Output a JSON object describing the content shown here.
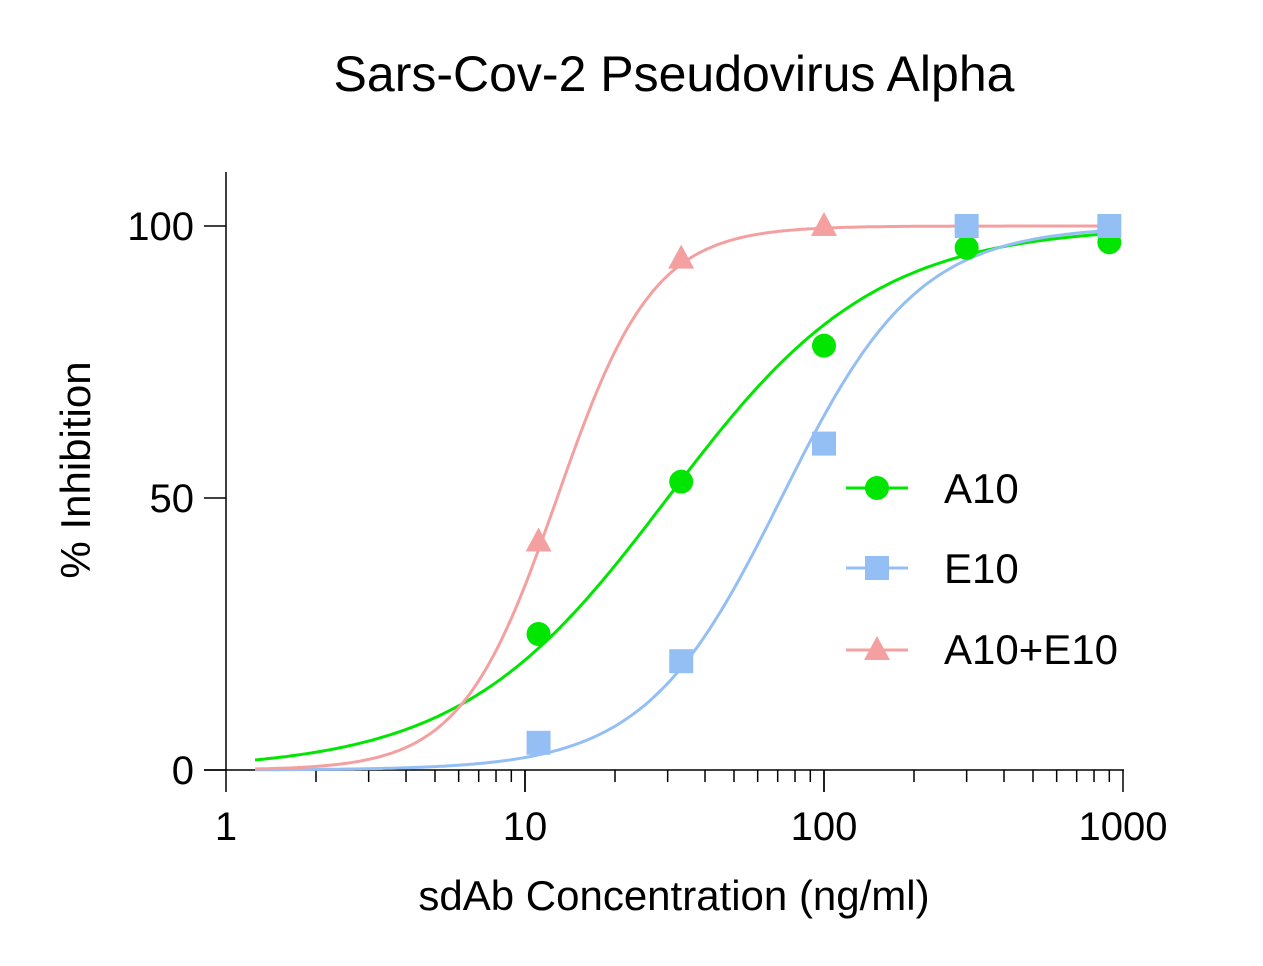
{
  "chart_data": {
    "type": "scatter",
    "title": "Sars-Cov-2 Pseudovirus Alpha",
    "xlabel": "sdAb Concentration (ng/ml)",
    "ylabel": "% Inhibition",
    "xscale": "log",
    "xlim": [
      1,
      1000
    ],
    "ylim": [
      0,
      100
    ],
    "xticks": [
      "1",
      "10",
      "100",
      "1000"
    ],
    "yticks": [
      "0",
      "50",
      "100"
    ],
    "grid": false,
    "legend_position": "right-center",
    "series": [
      {
        "name": "A10",
        "color": "#00e600",
        "marker": "circle",
        "fit": "sigmoidal dose-response",
        "x": [
          11.1,
          33.3,
          100,
          300,
          900
        ],
        "values": [
          25,
          53,
          78,
          96,
          97
        ]
      },
      {
        "name": "E10",
        "color": "#94bff5",
        "marker": "square",
        "fit": "sigmoidal dose-response",
        "x": [
          11.1,
          33.3,
          100,
          300,
          900
        ],
        "values": [
          5,
          20,
          60,
          100,
          100
        ]
      },
      {
        "name": "A10+E10",
        "color": "#f5a0a0",
        "marker": "triangle",
        "fit": "sigmoidal dose-response",
        "x": [
          11.1,
          33.3,
          100
        ],
        "values": [
          42,
          94,
          100
        ]
      }
    ]
  },
  "labels": {
    "title": "Sars-Cov-2 Pseudovirus Alpha",
    "xlabel": "sdAb Concentration (ng/ml)",
    "ylabel": "% Inhibition",
    "xticks": [
      "1",
      "10",
      "100",
      "1000"
    ],
    "yticks": [
      "0",
      "50",
      "100"
    ],
    "legend": [
      "A10",
      "E10",
      "A10+E10"
    ]
  }
}
